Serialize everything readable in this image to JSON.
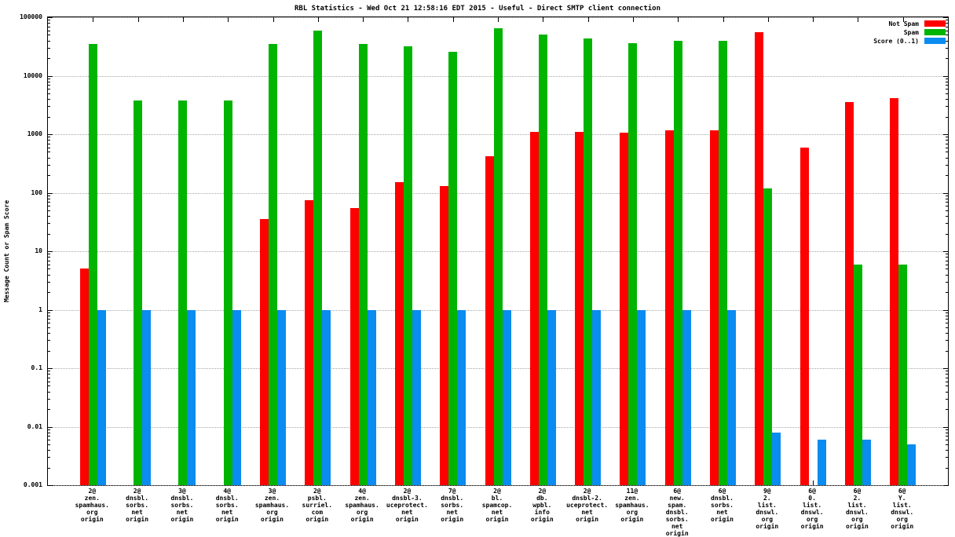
{
  "chart_data": {
    "type": "bar",
    "title": "RBL Statistics - Wed Oct 21 12:58:16 EDT 2015 - Useful - Direct SMTP client connection",
    "ylabel": "Message Count or Spam Score",
    "scale": "log",
    "ylim": [
      0.001,
      100000
    ],
    "yticks": [
      "100000",
      "10000",
      "1000",
      "100",
      "10",
      "1",
      "0.1",
      "0.01",
      "0.001"
    ],
    "ytick_values": [
      100000,
      10000,
      1000,
      100,
      10,
      1,
      0.1,
      0.01,
      0.001
    ],
    "grid": true,
    "legend_position": "top-right",
    "categories": [
      [
        "2@",
        "zen.",
        "spamhaus.",
        "org",
        "origin"
      ],
      [
        "2@",
        "dnsbl.",
        "sorbs.",
        "net",
        "origin"
      ],
      [
        "3@",
        "dnsbl.",
        "sorbs.",
        "net",
        "origin"
      ],
      [
        "4@",
        "dnsbl.",
        "sorbs.",
        "net",
        "origin"
      ],
      [
        "3@",
        "zen.",
        "spamhaus.",
        "org",
        "origin"
      ],
      [
        "2@",
        "psbl.",
        "surriel.",
        "com",
        "origin"
      ],
      [
        "4@",
        "zen.",
        "spamhaus.",
        "org",
        "origin"
      ],
      [
        "2@",
        "dnsbl-3.",
        "uceprotect.",
        "net",
        "origin"
      ],
      [
        "7@",
        "dnsbl.",
        "sorbs.",
        "net",
        "origin"
      ],
      [
        "2@",
        "bl.",
        "spamcop.",
        "net",
        "origin"
      ],
      [
        "2@",
        "db.",
        "wpbl.",
        "info",
        "origin"
      ],
      [
        "2@",
        "dnsbl-2.",
        "uceprotect.",
        "net",
        "origin"
      ],
      [
        "11@",
        "zen.",
        "spamhaus.",
        "org",
        "origin"
      ],
      [
        "6@",
        "new.",
        "spam.",
        "dnsbl.",
        "sorbs.",
        "net",
        "origin"
      ],
      [
        "6@",
        "dnsbl.",
        "sorbs.",
        "net",
        "origin"
      ],
      [
        "9@",
        "2.",
        "list.",
        "dnswl.",
        "org",
        "origin"
      ],
      [
        "6@",
        "0.",
        "list.",
        "dnswl.",
        "org",
        "origin"
      ],
      [
        "6@",
        "2.",
        "list.",
        "dnswl.",
        "org",
        "origin"
      ],
      [
        "6@",
        "Y.",
        "list.",
        "dnswl.",
        "org",
        "origin"
      ]
    ],
    "series": [
      {
        "name": "Not Spam",
        "color": "#ff0000",
        "values": [
          5,
          0,
          0,
          0,
          35,
          75,
          55,
          150,
          130,
          420,
          1100,
          1100,
          1050,
          1150,
          1150,
          55000,
          600,
          3600,
          4200
        ]
      },
      {
        "name": "Spam",
        "color": "#00b400",
        "values": [
          35000,
          3800,
          3800,
          3800,
          35000,
          60000,
          35000,
          32000,
          26000,
          65000,
          50000,
          43000,
          36000,
          40000,
          40000,
          120,
          0,
          6,
          6
        ]
      },
      {
        "name": "Score (0..1)",
        "color": "#0a8cf0",
        "values": [
          1,
          1,
          1,
          1,
          1,
          1,
          1,
          1,
          1,
          1,
          1,
          1,
          1,
          1,
          1,
          0.008,
          0.006,
          0.006,
          0.005
        ]
      }
    ]
  }
}
